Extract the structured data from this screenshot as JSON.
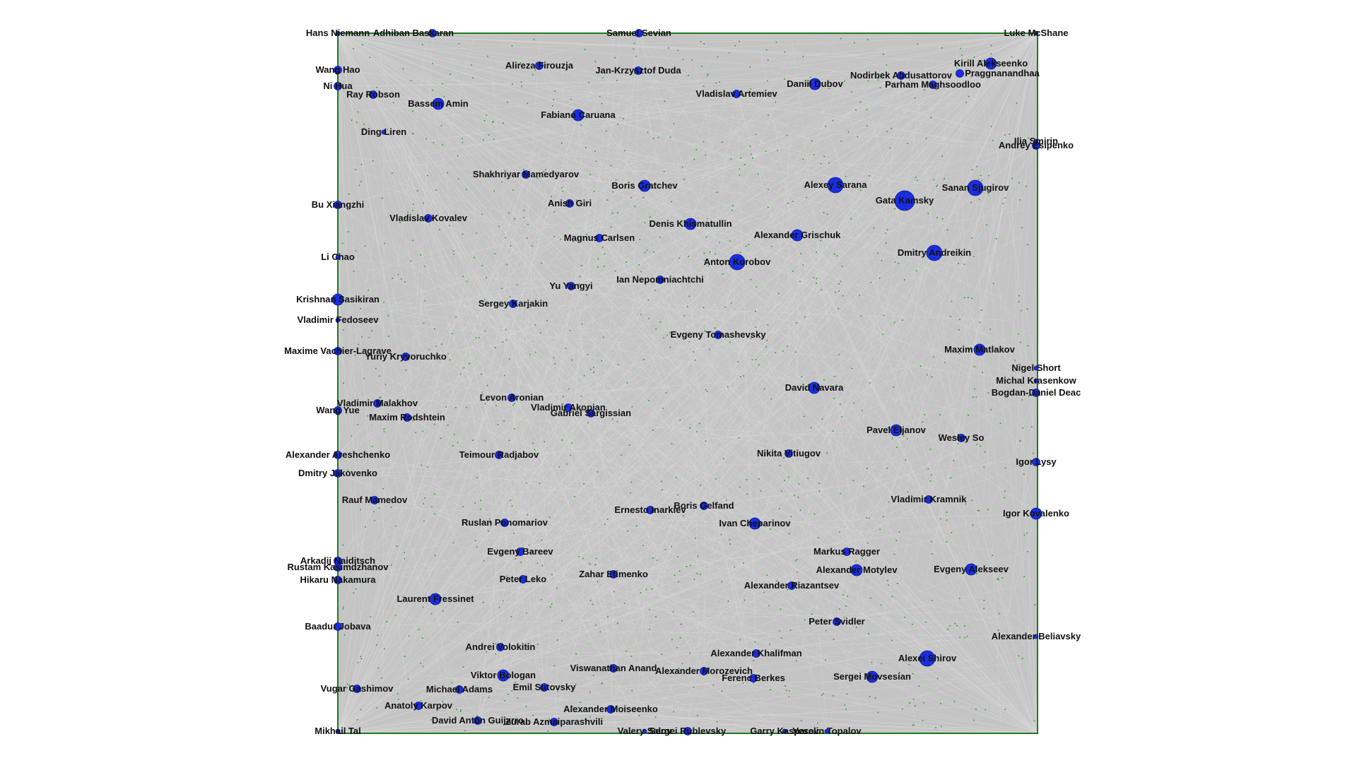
{
  "colors": {
    "background": "#ffffff",
    "plot_fill": "#c4c4c4",
    "edge": "#d8d8d8",
    "border": "#1f7a1f",
    "dot": "#22a022",
    "node_fill": "#1a2ee0",
    "node_stroke": "#0a1a8a",
    "label": "#111111"
  },
  "graph": {
    "nodes": [
      {
        "label": "Hans Niemann",
        "size": 1
      },
      {
        "label": "Adhiban Baskaran",
        "size": 2
      },
      {
        "label": "Samuel Sevian",
        "size": 2
      },
      {
        "label": "Luke McShane",
        "size": 1
      },
      {
        "label": "Kirill Alekseenko",
        "size": 3
      },
      {
        "label": "Praggnanandhaa",
        "size": 2
      },
      {
        "label": "Parham Maghsoodloo",
        "size": 2
      },
      {
        "label": "Nodirbek Abdusattorov",
        "size": 2
      },
      {
        "label": "Daniil Dubov",
        "size": 3
      },
      {
        "label": "Alireza Firouzja",
        "size": 2
      },
      {
        "label": "Jan-Krzysztof Duda",
        "size": 2
      },
      {
        "label": "Vladislav Artemiev",
        "size": 2
      },
      {
        "label": "Wang Hao",
        "size": 2
      },
      {
        "label": "Ni Hua",
        "size": 2
      },
      {
        "label": "Ray Robson",
        "size": 2
      },
      {
        "label": "Bassem Amin",
        "size": 3
      },
      {
        "label": "Fabiano Caruana",
        "size": 3
      },
      {
        "label": "Ding Liren",
        "size": 1
      },
      {
        "label": "Andrey Esipenko",
        "size": 2
      },
      {
        "label": "Ilia Smirin",
        "size": 1
      },
      {
        "label": "Shakhriyar Mamedyarov",
        "size": 2
      },
      {
        "label": "Boris Gratchev",
        "size": 3
      },
      {
        "label": "Alexey Sarana",
        "size": 4
      },
      {
        "label": "Gata Kamsky",
        "size": 5
      },
      {
        "label": "Sanan Sjugirov",
        "size": 4
      },
      {
        "label": "Bu Xiangzhi",
        "size": 2
      },
      {
        "label": "Anish Giri",
        "size": 2
      },
      {
        "label": "Vladislav Kovalev",
        "size": 2
      },
      {
        "label": "Denis Khismatullin",
        "size": 3
      },
      {
        "label": "Alexander Grischuk",
        "size": 3
      },
      {
        "label": "Magnus Carlsen",
        "size": 2
      },
      {
        "label": "Dmitry Andreikin",
        "size": 4
      },
      {
        "label": "Li Chao",
        "size": 1
      },
      {
        "label": "Anton Korobov",
        "size": 4
      },
      {
        "label": "Ian Nepomniachtchi",
        "size": 2
      },
      {
        "label": "Yu Yangyi",
        "size": 2
      },
      {
        "label": "Krishnan Sasikiran",
        "size": 3
      },
      {
        "label": "Sergey Karjakin",
        "size": 2
      },
      {
        "label": "Vladimir Fedoseev",
        "size": 1
      },
      {
        "label": "Evgeny Tomashevsky",
        "size": 2
      },
      {
        "label": "Maxime Vachier-Lagrave",
        "size": 2
      },
      {
        "label": "Yuriy Kryvoruchko",
        "size": 2
      },
      {
        "label": "Maxim Matlakov",
        "size": 3
      },
      {
        "label": "Nigel Short",
        "size": 1
      },
      {
        "label": "Michal Krasenkow",
        "size": 1
      },
      {
        "label": "Bogdan-Daniel Deac",
        "size": 2
      },
      {
        "label": "David Navara",
        "size": 3
      },
      {
        "label": "Levon Aronian",
        "size": 2
      },
      {
        "label": "Vladimir Malakhov",
        "size": 2
      },
      {
        "label": "Wang Yue",
        "size": 2
      },
      {
        "label": "Vladimir Akopian",
        "size": 2
      },
      {
        "label": "Gabriel Sargissian",
        "size": 2
      },
      {
        "label": "Maxim Rodshtein",
        "size": 2
      },
      {
        "label": "Pavel Eljanov",
        "size": 3
      },
      {
        "label": "Wesley So",
        "size": 2
      },
      {
        "label": "Alexander Areshchenko",
        "size": 2
      },
      {
        "label": "Teimour Radjabov",
        "size": 2
      },
      {
        "label": "Nikita Vitiugov",
        "size": 2
      },
      {
        "label": "Igor Lysy",
        "size": 2
      },
      {
        "label": "Dmitry Jakovenko",
        "size": 2
      },
      {
        "label": "Rauf Mamedov",
        "size": 2
      },
      {
        "label": "Ernesto Inarkiev",
        "size": 2
      },
      {
        "label": "Boris Gelfand",
        "size": 2
      },
      {
        "label": "Vladimir Kramnik",
        "size": 2
      },
      {
        "label": "Ivan Cheparinov",
        "size": 3
      },
      {
        "label": "Igor Kovalenko",
        "size": 3
      },
      {
        "label": "Ruslan Ponomariov",
        "size": 2
      },
      {
        "label": "Evgeny Bareev",
        "size": 2
      },
      {
        "label": "Markus Ragger",
        "size": 2
      },
      {
        "label": "Arkadij Naiditsch",
        "size": 2
      },
      {
        "label": "Rustam Kasimdzhanov",
        "size": 2
      },
      {
        "label": "Alexander Motylev",
        "size": 3
      },
      {
        "label": "Evgeny Alekseev",
        "size": 3
      },
      {
        "label": "Hikaru Nakamura",
        "size": 2
      },
      {
        "label": "Peter Leko",
        "size": 2
      },
      {
        "label": "Zahar Efimenko",
        "size": 2
      },
      {
        "label": "Alexander Riazantsev",
        "size": 2
      },
      {
        "label": "Laurent Fressinet",
        "size": 3
      },
      {
        "label": "Baadur Jobava",
        "size": 2
      },
      {
        "label": "Peter Svidler",
        "size": 2
      },
      {
        "label": "Alexander Beliavsky",
        "size": 1
      },
      {
        "label": "Andrei Volokitin",
        "size": 2
      },
      {
        "label": "Alexander Khalifman",
        "size": 2
      },
      {
        "label": "Alexei Shirov",
        "size": 4
      },
      {
        "label": "Viswanathan Anand",
        "size": 2
      },
      {
        "label": "Viktor Bologan",
        "size": 3
      },
      {
        "label": "Alexander Morozevich",
        "size": 2
      },
      {
        "label": "Ferenc Berkes",
        "size": 2
      },
      {
        "label": "Sergei Movsesian",
        "size": 3
      },
      {
        "label": "Vugar Gashimov",
        "size": 2
      },
      {
        "label": "Michael Adams",
        "size": 2
      },
      {
        "label": "Emil Sutovsky",
        "size": 2
      },
      {
        "label": "Anatoly Karpov",
        "size": 2
      },
      {
        "label": "Alexander Moiseenko",
        "size": 2
      },
      {
        "label": "David Antón Guijarro",
        "size": 2
      },
      {
        "label": "Zurab Azmaiparashvili",
        "size": 2
      },
      {
        "label": "Mikhail Tal",
        "size": 1
      },
      {
        "label": "Valery Salov",
        "size": 1
      },
      {
        "label": "Sergei Rublevsky",
        "size": 2
      },
      {
        "label": "Garry Kasparov",
        "size": 1
      },
      {
        "label": "Veselin Topalov",
        "size": 1
      }
    ]
  }
}
